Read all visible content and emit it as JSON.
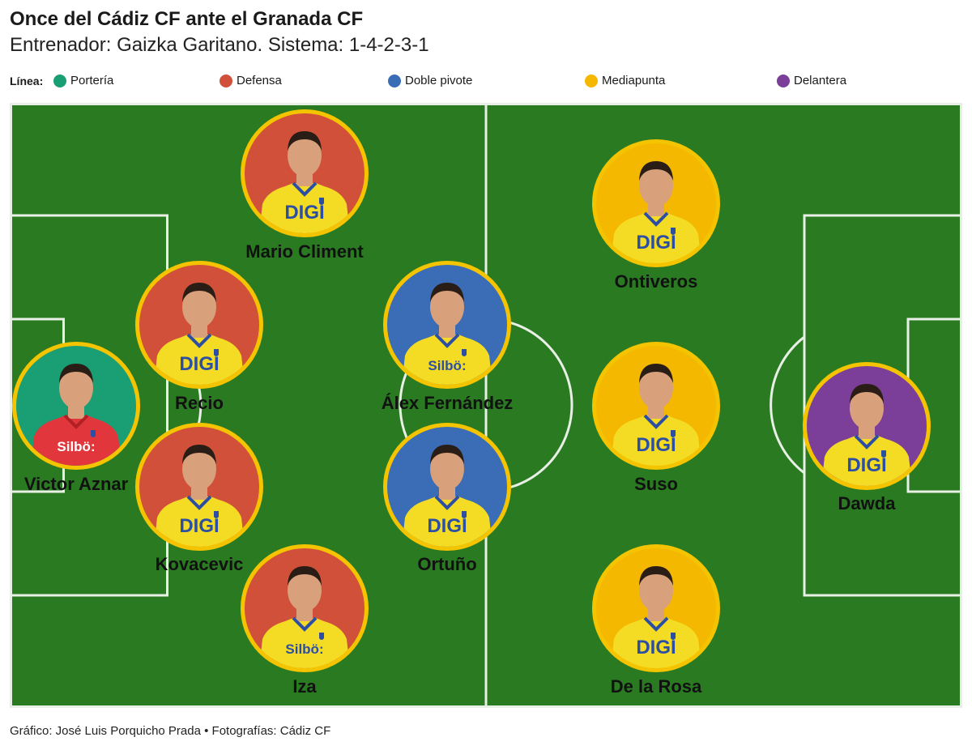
{
  "header": {
    "title": "Once del Cádiz CF ante el Granada CF",
    "subtitle": "Entrenador: Gaizka Garitano. Sistema: 1-4-2-3-1"
  },
  "legend": {
    "label": "Línea:",
    "items": [
      {
        "label": "Portería",
        "color": "#1a9e74"
      },
      {
        "label": "Defensa",
        "color": "#d1503a"
      },
      {
        "label": "Doble pivote",
        "color": "#3a6db5"
      },
      {
        "label": "Mediapunta",
        "color": "#f5b800"
      },
      {
        "label": "Delantera",
        "color": "#7b3f99"
      }
    ]
  },
  "colors": {
    "pitch": "#2a7a22",
    "lines": "#e8efe4",
    "ring": "#f5c400",
    "shirt": "#f4dc24",
    "keeper_shirt": "#e0363c",
    "skin": "#d9a07c",
    "hair": "#2a1d16"
  },
  "players": [
    {
      "name": "Victor Aznar",
      "line": "Portería",
      "bg": "#1a9e74",
      "sponsor": "Silbö:"
    },
    {
      "name": "Mario Climent",
      "line": "Defensa",
      "bg": "#d1503a",
      "sponsor": "DIGI"
    },
    {
      "name": "Recio",
      "line": "Defensa",
      "bg": "#d1503a",
      "sponsor": "DIGI"
    },
    {
      "name": "Kovacevic",
      "line": "Defensa",
      "bg": "#d1503a",
      "sponsor": "DIGI"
    },
    {
      "name": "Iza",
      "line": "Defensa",
      "bg": "#d1503a",
      "sponsor": "Silbö:"
    },
    {
      "name": "Álex Fernández",
      "line": "Doble pivote",
      "bg": "#3a6db5",
      "sponsor": "Silbö:"
    },
    {
      "name": "Ortuño",
      "line": "Doble pivote",
      "bg": "#3a6db5",
      "sponsor": "DIGI"
    },
    {
      "name": "Ontiveros",
      "line": "Mediapunta",
      "bg": "#f5b800",
      "sponsor": "DIGI"
    },
    {
      "name": "Suso",
      "line": "Mediapunta",
      "bg": "#f5b800",
      "sponsor": "DIGI"
    },
    {
      "name": "De la Rosa",
      "line": "Mediapunta",
      "bg": "#f5b800",
      "sponsor": "DIGI"
    },
    {
      "name": "Dawda",
      "line": "Delantera",
      "bg": "#7b3f99",
      "sponsor": "DIGI"
    }
  ],
  "credits": "Gráfico: José Luis Porquicho Prada • Fotografías: Cádiz CF"
}
